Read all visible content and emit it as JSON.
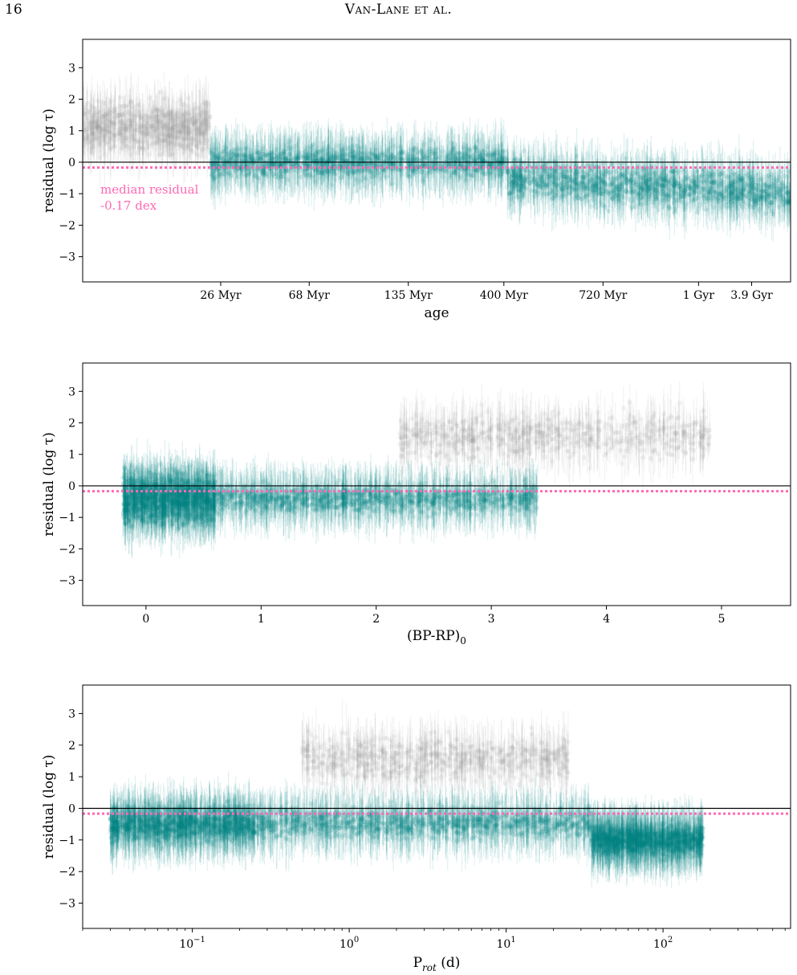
{
  "page": {
    "number": "16",
    "running_head": "Van-Lane et al."
  },
  "colors": {
    "bad_fit": "#999999",
    "good_fit": "#008080",
    "median_line": "#ff69b4",
    "zero_line": "#000000"
  },
  "chart_data": [
    {
      "type": "scatter",
      "panel": "top",
      "xlabel": "age",
      "ylabel": "residual (log τ)",
      "x_scale": "categorical-age",
      "x_tick_labels": [
        "26 Myr",
        "68 Myr",
        "135 Myr",
        "400 Myr",
        "720 Myr",
        "1 Gyr",
        "3.9 Gyr"
      ],
      "ylim": [
        -3.8,
        3.9
      ],
      "y_ticks": [
        -3,
        -2,
        -1,
        0,
        1,
        2,
        3
      ],
      "reference_lines": [
        {
          "kind": "zero",
          "y": 0,
          "style": "solid"
        },
        {
          "kind": "median",
          "y": -0.17,
          "style": "dotted"
        }
      ],
      "annotation": {
        "line1": "median residual",
        "line2": "-0.17 dex"
      },
      "point_groups": [
        {
          "color": "gray",
          "x_range": [
            0,
            0.18
          ],
          "y_center": 1.1,
          "y_spread": 1.0
        },
        {
          "color": "teal",
          "x_range": [
            0.18,
            0.6
          ],
          "y_center": 0.0,
          "y_spread": 0.6
        },
        {
          "color": "teal",
          "x_range": [
            0.6,
            1.0
          ],
          "y_center": -0.5,
          "y_spread": 0.8
        }
      ]
    },
    {
      "type": "scatter",
      "panel": "middle",
      "xlabel": "(BP-RP)",
      "xlabel_subscript": "0",
      "ylabel": "residual (log τ)",
      "xlim": [
        -0.55,
        5.6
      ],
      "x_ticks": [
        0,
        1,
        2,
        3,
        4,
        5
      ],
      "ylim": [
        -3.8,
        3.9
      ],
      "y_ticks": [
        -3,
        -2,
        -1,
        0,
        1,
        2,
        3
      ],
      "reference_lines": [
        {
          "kind": "zero",
          "y": 0,
          "style": "solid"
        },
        {
          "kind": "median",
          "y": -0.17,
          "style": "dotted"
        }
      ],
      "point_groups": [
        {
          "color": "teal",
          "x_range": [
            -0.2,
            0.6
          ],
          "y_center": -0.4,
          "y_spread": 1.0
        },
        {
          "color": "teal",
          "x_range": [
            0.6,
            3.4
          ],
          "y_center": -0.4,
          "y_spread": 0.55
        },
        {
          "color": "gray",
          "x_range": [
            2.2,
            4.9
          ],
          "y_center": 1.6,
          "y_spread": 0.9
        }
      ]
    },
    {
      "type": "scatter",
      "panel": "bottom",
      "xlabel": "P",
      "xlabel_subscript": "rot",
      "xlabel_suffix": " (d)",
      "ylabel": "residual (log τ)",
      "x_scale": "log",
      "xlim": [
        0.02,
        650
      ],
      "x_ticks": [
        0.1,
        1,
        10,
        100
      ],
      "x_tick_base": "10",
      "x_tick_exponents": [
        "−1",
        "0",
        "1",
        "2"
      ],
      "ylim": [
        -3.8,
        3.9
      ],
      "y_ticks": [
        -3,
        -2,
        -1,
        0,
        1,
        2,
        3
      ],
      "reference_lines": [
        {
          "kind": "zero",
          "y": 0,
          "style": "solid"
        },
        {
          "kind": "median",
          "y": -0.17,
          "style": "dotted"
        }
      ],
      "point_groups": [
        {
          "color": "teal",
          "x_range": [
            0.03,
            0.25
          ],
          "y_center": -0.5,
          "y_spread": 0.7
        },
        {
          "color": "teal",
          "x_range": [
            0.25,
            35
          ],
          "y_center": -0.45,
          "y_spread": 0.6
        },
        {
          "color": "gray",
          "x_range": [
            0.5,
            25
          ],
          "y_center": 1.6,
          "y_spread": 0.9
        },
        {
          "color": "teal",
          "x_range": [
            35,
            180
          ],
          "y_center": -1.0,
          "y_spread": 0.6
        }
      ]
    }
  ]
}
